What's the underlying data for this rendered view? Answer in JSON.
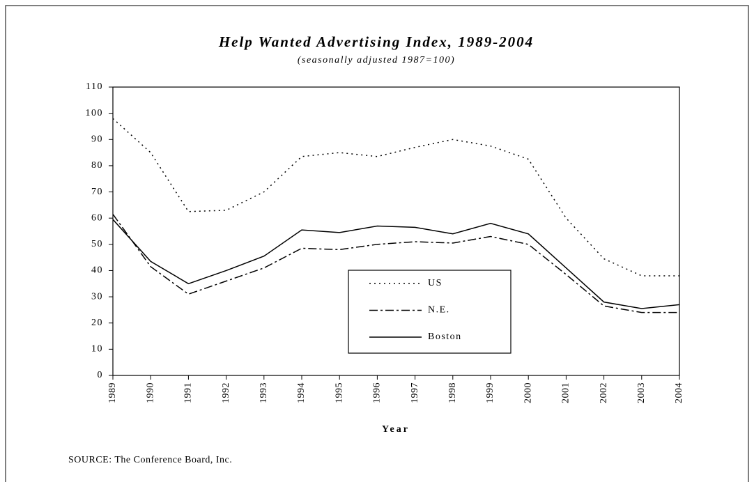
{
  "chart_data": {
    "type": "line",
    "title": "Help Wanted Advertising Index, 1989-2004",
    "subtitle": "(seasonally adjusted 1987=100)",
    "x_label": "Year",
    "source": "SOURCE:  The Conference Board, Inc.",
    "categories": [
      "1989",
      "1990",
      "1991",
      "1992",
      "1993",
      "1994",
      "1995",
      "1996",
      "1997",
      "1998",
      "1999",
      "2000",
      "2001",
      "2002",
      "2003",
      "2004"
    ],
    "series": [
      {
        "name": "US",
        "color": "#000000",
        "line_style": "dotted",
        "values": [
          98,
          85,
          62.5,
          63,
          70,
          83.5,
          85,
          83.5,
          87,
          90,
          87.5,
          82.5,
          60,
          44.5,
          38,
          38
        ]
      },
      {
        "name": "N.E.",
        "color": "#000000",
        "line_style": "dash-dot",
        "values": [
          61.5,
          41.5,
          31,
          36,
          41,
          48.5,
          48,
          50,
          51,
          50.5,
          53,
          50,
          38.5,
          26.5,
          24,
          24
        ]
      },
      {
        "name": "Boston",
        "color": "#000000",
        "line_style": "solid",
        "values": [
          59.5,
          43.5,
          35,
          40,
          45.5,
          55.5,
          54.5,
          57,
          56.5,
          54,
          58,
          54,
          41,
          28,
          25.5,
          27
        ]
      }
    ],
    "ylim": [
      0,
      110
    ],
    "yticks": [
      0,
      10,
      20,
      30,
      40,
      50,
      60,
      70,
      80,
      90,
      100,
      110
    ],
    "grid": false,
    "legend": "center"
  }
}
